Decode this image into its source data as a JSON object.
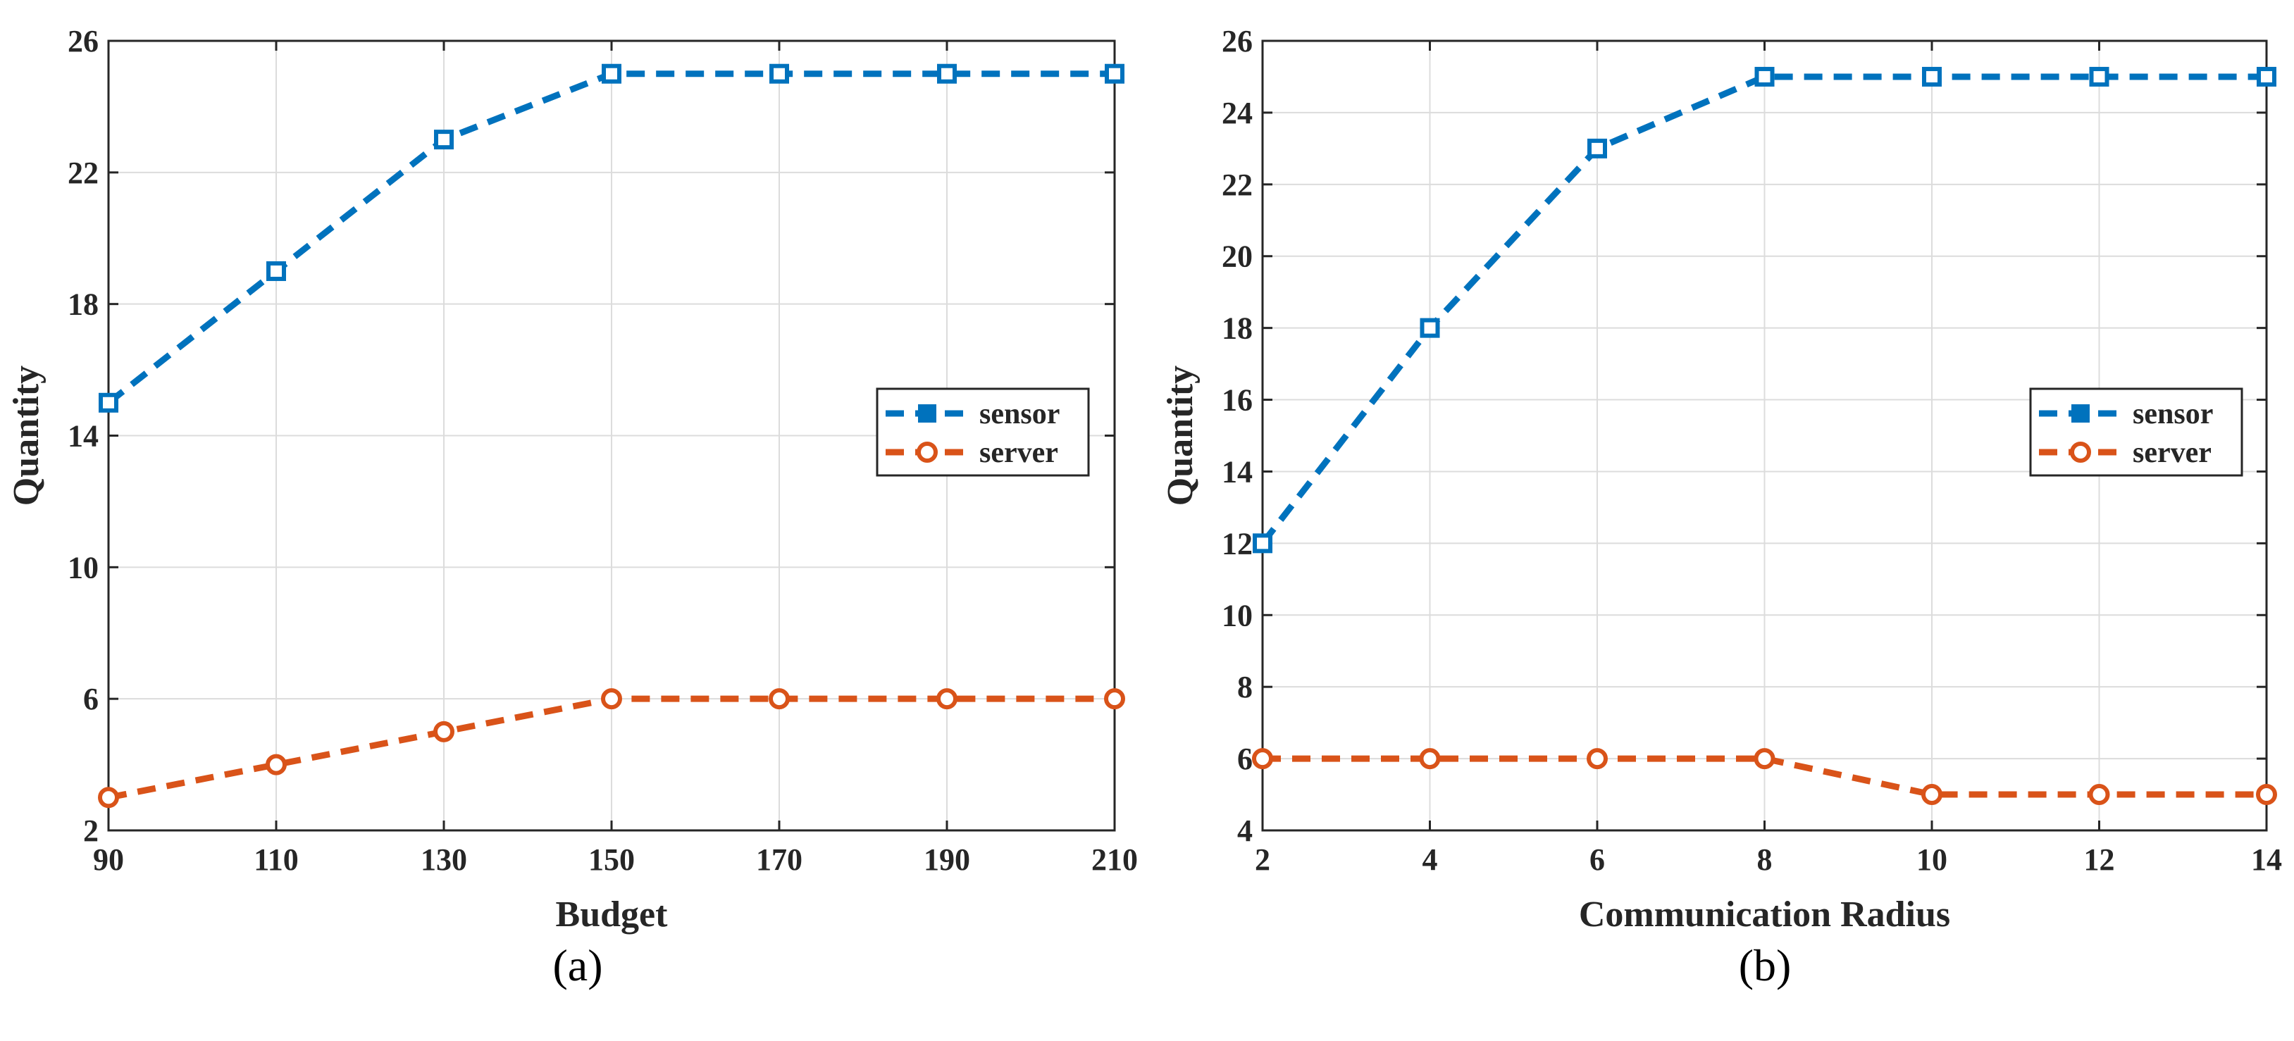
{
  "chart_data": [
    {
      "type": "line",
      "title": "",
      "xlabel": "Budget",
      "ylabel": "Quantity",
      "caption": "(a)",
      "x": [
        90,
        110,
        130,
        150,
        170,
        190,
        210
      ],
      "xlim": [
        90,
        210
      ],
      "ylim": [
        2,
        26
      ],
      "xticks": [
        90,
        110,
        130,
        150,
        170,
        190,
        210
      ],
      "yticks": [
        2,
        6,
        10,
        14,
        18,
        22,
        26
      ],
      "grid": true,
      "legend_position": "right-middle",
      "series": [
        {
          "name": "sensor",
          "marker": "square",
          "color": "#0072BD",
          "values": [
            15,
            19,
            23,
            25,
            25,
            25,
            25
          ]
        },
        {
          "name": "server",
          "marker": "circle",
          "color": "#D95319",
          "values": [
            3,
            4,
            5,
            6,
            6,
            6,
            6
          ]
        }
      ]
    },
    {
      "type": "line",
      "title": "",
      "xlabel": "Communication Radius",
      "ylabel": "Quantity",
      "caption": "(b)",
      "x": [
        2,
        4,
        6,
        8,
        10,
        12,
        14
      ],
      "xlim": [
        2,
        14
      ],
      "ylim": [
        4,
        26
      ],
      "xticks": [
        2,
        4,
        6,
        8,
        10,
        12,
        14
      ],
      "yticks": [
        4,
        6,
        8,
        10,
        12,
        14,
        16,
        18,
        20,
        22,
        24,
        26
      ],
      "grid": true,
      "legend_position": "right-middle",
      "series": [
        {
          "name": "sensor",
          "marker": "square",
          "color": "#0072BD",
          "values": [
            12,
            18,
            23,
            25,
            25,
            25,
            25
          ]
        },
        {
          "name": "server",
          "marker": "circle",
          "color": "#D95319",
          "values": [
            6,
            6,
            6,
            6,
            5,
            5,
            5
          ]
        }
      ]
    }
  ]
}
